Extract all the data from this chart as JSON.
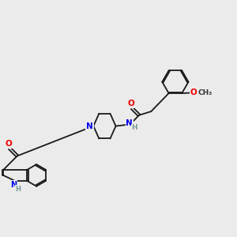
{
  "background_color": "#ebebeb",
  "bond_color": "#1a1a1a",
  "atom_colors": {
    "N": "#0000ee",
    "O": "#ee0000",
    "H": "#7a9a9a",
    "C": "#1a1a1a"
  },
  "figsize": [
    3.0,
    3.0
  ],
  "dpi": 100
}
